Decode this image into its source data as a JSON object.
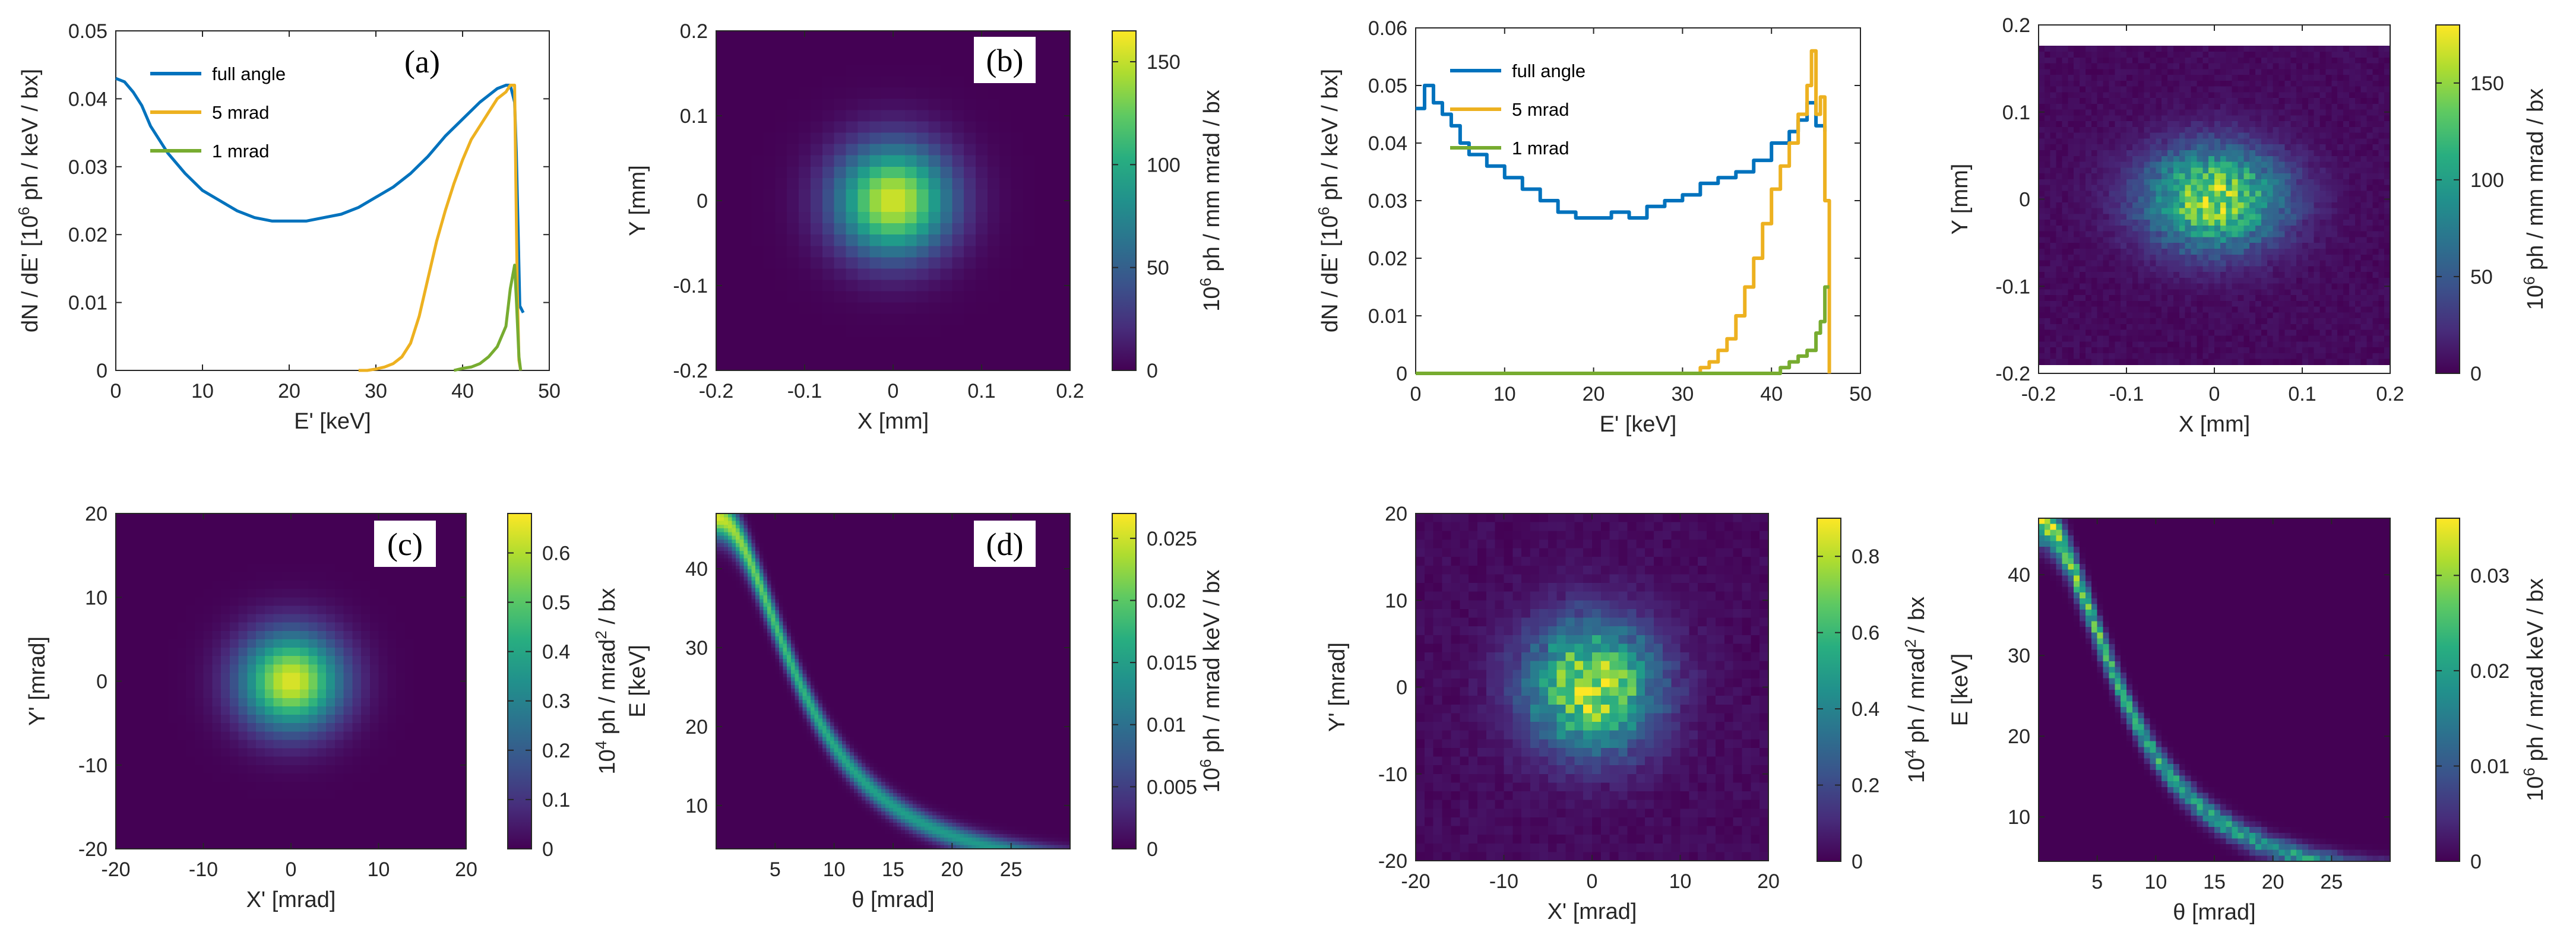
{
  "colors": {
    "blue": "#0072BD",
    "orange": "#EDB120",
    "green": "#77AC30",
    "axis": "#262626",
    "viridis_low": "#440154",
    "viridis_high": "#fde725"
  },
  "chart_data": [
    {
      "id": "a",
      "type": "line",
      "panel_label": "(a)",
      "xlabel": "E' [keV]",
      "ylabel_main": "dN / dE' [10",
      "ylabel_sup": "6",
      "ylabel_rest": " ph / keV / bx]",
      "xlim": [
        0,
        50
      ],
      "ylim": [
        0,
        0.05
      ],
      "xticks": [
        "0",
        "10",
        "20",
        "30",
        "40",
        "50"
      ],
      "yticks": [
        "0",
        "0.01",
        "0.02",
        "0.03",
        "0.04",
        "0.05"
      ],
      "legend": [
        "full angle",
        "5 mrad",
        "1 mrad"
      ],
      "series": [
        {
          "name": "full angle",
          "color": "blue",
          "x": [
            0,
            1,
            2,
            3,
            4,
            6,
            8,
            10,
            12,
            14,
            16,
            18,
            20,
            22,
            24,
            26,
            28,
            30,
            32,
            34,
            36,
            38,
            40,
            42,
            43,
            44,
            45,
            45.5,
            46,
            46.2,
            46.4,
            46.6,
            47
          ],
          "y": [
            0.043,
            0.0425,
            0.041,
            0.039,
            0.036,
            0.032,
            0.029,
            0.0265,
            0.025,
            0.0235,
            0.0225,
            0.022,
            0.022,
            0.022,
            0.0225,
            0.023,
            0.024,
            0.0255,
            0.027,
            0.029,
            0.0315,
            0.0345,
            0.037,
            0.0395,
            0.0405,
            0.0415,
            0.042,
            0.042,
            0.0395,
            0.032,
            0.021,
            0.0095,
            0.0085
          ]
        },
        {
          "name": "5 mrad",
          "color": "orange",
          "x": [
            28,
            29,
            30,
            31,
            32,
            33,
            34,
            35,
            36,
            37,
            38,
            39,
            40,
            41,
            42,
            43,
            44,
            45,
            45.5,
            46,
            46.3,
            46.5,
            46.7
          ],
          "y": [
            0,
            0,
            0.0002,
            0.0005,
            0.001,
            0.002,
            0.004,
            0.008,
            0.0135,
            0.019,
            0.0235,
            0.0275,
            0.031,
            0.034,
            0.036,
            0.038,
            0.04,
            0.041,
            0.042,
            0.042,
            0.0125,
            0.0015,
            0
          ]
        },
        {
          "name": "1 mrad",
          "color": "green",
          "x": [
            39,
            40,
            41,
            42,
            43,
            44,
            45,
            45.5,
            46,
            46.2,
            46.5,
            46.7
          ],
          "y": [
            0,
            0.0003,
            0.0005,
            0.001,
            0.002,
            0.0035,
            0.0065,
            0.012,
            0.0155,
            0.0105,
            0.002,
            0
          ]
        }
      ]
    },
    {
      "id": "b",
      "type": "heatmap",
      "panel_label": "(b)",
      "xlabel": "X [mm]",
      "ylabel": "Y [mm]",
      "xlim": [
        -0.2,
        0.2
      ],
      "ylim": [
        -0.2,
        0.2
      ],
      "xticks": [
        "-0.2",
        "-0.1",
        "0",
        "0.1",
        "0.2"
      ],
      "yticks": [
        "-0.2",
        "-0.1",
        "0",
        "0.1",
        "0.2"
      ],
      "colorbar": {
        "ticks": [
          "0",
          "50",
          "100",
          "150"
        ],
        "max": 165,
        "label_pre": "10",
        "label_sup": "6",
        "label_post": " ph / mm mrad / bx"
      },
      "peak": 155,
      "sigma": [
        0.045,
        0.045
      ],
      "center": [
        0,
        0
      ],
      "grid": 30,
      "noisy": false
    },
    {
      "id": "c",
      "type": "heatmap",
      "panel_label": "(c)",
      "xlabel": "X' [mrad]",
      "ylabel": "Y' [mrad]",
      "xlim": [
        -20,
        20
      ],
      "ylim": [
        -20,
        20
      ],
      "xticks": [
        "-20",
        "-10",
        "0",
        "10",
        "20"
      ],
      "yticks": [
        "-20",
        "-10",
        "0",
        "10",
        "20"
      ],
      "colorbar": {
        "ticks": [
          "0",
          "0.1",
          "0.2",
          "0.3",
          "0.4",
          "0.5",
          "0.6"
        ],
        "max": 0.68,
        "label_pre": "10",
        "label_sup": "4",
        "label_post": " ph / mrad",
        "label_sup2": "2",
        "label_post2": " / bx"
      },
      "peak": 0.65,
      "sigma": [
        4.0,
        4.0
      ],
      "center": [
        0,
        0
      ],
      "grid": 40,
      "noisy": false
    },
    {
      "id": "d",
      "type": "heatmap_curve",
      "panel_label": "(d)",
      "xlabel": "θ [mrad]",
      "ylabel": "E [keV]",
      "xlim": [
        0,
        30
      ],
      "ylim": [
        4.5,
        47
      ],
      "xticks": [
        "5",
        "10",
        "15",
        "20",
        "25"
      ],
      "yticks": [
        "10",
        "20",
        "30",
        "40"
      ],
      "colorbar": {
        "ticks": [
          "0",
          "0.005",
          "0.01",
          "0.015",
          "0.02",
          "0.025"
        ],
        "max": 0.027,
        "label_pre": "10",
        "label_sup": "6",
        "label_post": " ph / mrad keV / bx"
      },
      "peak": 0.026,
      "noisy": false
    },
    {
      "id": "e",
      "type": "line",
      "panel_label": "",
      "xlabel": "E' [keV]",
      "ylabel_main": "dN / dE' [10",
      "ylabel_sup": "6",
      "ylabel_rest": " ph / keV / bx]",
      "xlim": [
        0,
        50
      ],
      "ylim": [
        0,
        0.06
      ],
      "xticks": [
        "0",
        "10",
        "20",
        "30",
        "40",
        "50"
      ],
      "yticks": [
        "0",
        "0.01",
        "0.02",
        "0.03",
        "0.04",
        "0.05",
        "0.06"
      ],
      "legend": [
        "full angle",
        "5 mrad",
        "1 mrad"
      ],
      "series": [
        {
          "name": "full angle",
          "color": "blue",
          "x": [
            0,
            1,
            2,
            3,
            4,
            5,
            6,
            8,
            10,
            12,
            14,
            16,
            18,
            20,
            22,
            24,
            26,
            28,
            30,
            32,
            34,
            36,
            38,
            40,
            42,
            43,
            44,
            45,
            46
          ],
          "y": [
            0.046,
            0.05,
            0.047,
            0.045,
            0.043,
            0.04,
            0.038,
            0.036,
            0.034,
            0.032,
            0.03,
            0.028,
            0.027,
            0.027,
            0.028,
            0.027,
            0.029,
            0.03,
            0.031,
            0.033,
            0.034,
            0.035,
            0.037,
            0.04,
            0.042,
            0.044,
            0.047,
            0.043,
            0.042
          ]
        },
        {
          "name": "5 mrad",
          "color": "orange",
          "x": [
            0,
            30,
            31,
            32,
            33,
            34,
            35,
            36,
            37,
            38,
            39,
            40,
            41,
            42,
            43,
            44,
            44.5,
            45,
            45.5,
            46,
            46.5
          ],
          "y": [
            0,
            0,
            0,
            0.001,
            0.002,
            0.004,
            0.006,
            0.01,
            0.015,
            0.02,
            0.026,
            0.032,
            0.036,
            0.04,
            0.045,
            0.05,
            0.056,
            0.045,
            0.048,
            0.03,
            0
          ]
        },
        {
          "name": "1 mrad",
          "color": "green",
          "x": [
            0,
            40,
            41,
            42,
            43,
            44,
            45,
            45.5,
            46,
            46.5
          ],
          "y": [
            0,
            0,
            0.001,
            0.002,
            0.003,
            0.004,
            0.007,
            0.009,
            0.015,
            0.015
          ]
        }
      ]
    },
    {
      "id": "f",
      "type": "heatmap",
      "panel_label": "",
      "xlabel": "X [mm]",
      "ylabel": "Y [mm]",
      "xlim": [
        -0.2,
        0.2
      ],
      "ylim": [
        -0.2,
        0.2
      ],
      "data_ylim": [
        -0.19,
        0.176
      ],
      "xticks": [
        "-0.2",
        "-0.1",
        "0",
        "0.1",
        "0.2"
      ],
      "yticks": [
        "-0.2",
        "-0.1",
        "0",
        "0.1",
        "0.2"
      ],
      "colorbar": {
        "ticks": [
          "0",
          "50",
          "100",
          "150"
        ],
        "max": 180,
        "label_pre": "10",
        "label_sup": "6",
        "label_post": " ph / mm mrad / bx"
      },
      "peak": 150,
      "sigma": [
        0.055,
        0.04
      ],
      "center": [
        0,
        0
      ],
      "grid": 60,
      "noisy": true
    },
    {
      "id": "g",
      "type": "heatmap",
      "panel_label": "",
      "xlabel": "X' [mrad]",
      "ylabel": "Y' [mrad]",
      "xlim": [
        -20,
        20
      ],
      "ylim": [
        -20,
        20
      ],
      "xticks": [
        "-20",
        "-10",
        "0",
        "10",
        "20"
      ],
      "yticks": [
        "-20",
        "-10",
        "0",
        "10",
        "20"
      ],
      "colorbar": {
        "ticks": [
          "0",
          "0.2",
          "0.4",
          "0.6",
          "0.8"
        ],
        "max": 0.9,
        "label_pre": "10",
        "label_sup": "4",
        "label_post": " ph / mrad",
        "label_sup2": "2",
        "label_post2": " / bx"
      },
      "peak": 0.8,
      "sigma": [
        5.0,
        5.0
      ],
      "center": [
        0,
        0
      ],
      "grid": 40,
      "noisy": true
    },
    {
      "id": "h",
      "type": "heatmap_curve",
      "panel_label": "",
      "xlabel": "θ [mrad]",
      "ylabel": "E [keV]",
      "xlim": [
        0,
        30
      ],
      "ylim": [
        4.5,
        47
      ],
      "xticks": [
        "5",
        "10",
        "15",
        "20",
        "25"
      ],
      "yticks": [
        "10",
        "20",
        "30",
        "40"
      ],
      "colorbar": {
        "ticks": [
          "0",
          "0.01",
          "0.02",
          "0.03"
        ],
        "max": 0.036,
        "label_pre": "10",
        "label_sup": "6",
        "label_post": " ph / mrad keV / bx"
      },
      "peak": 0.033,
      "noisy": true
    }
  ]
}
